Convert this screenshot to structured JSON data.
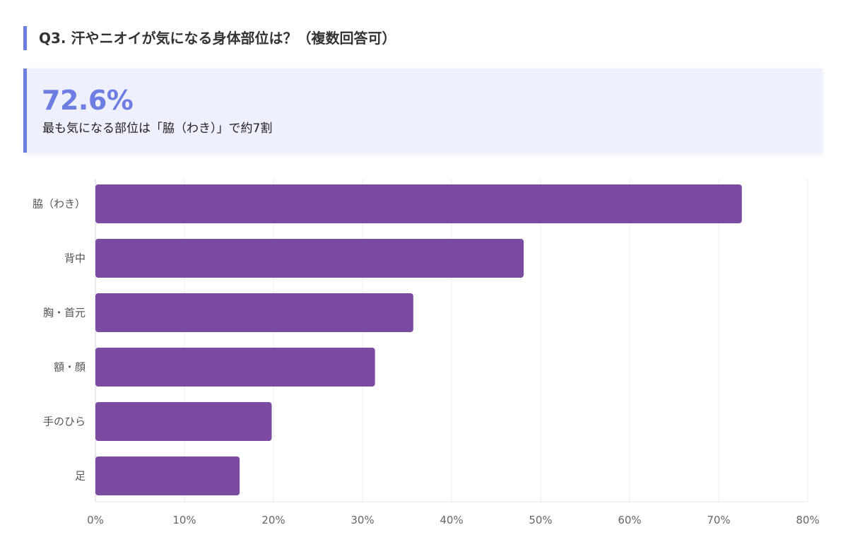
{
  "question": {
    "title": "Q3. 汗やニオイが気になる身体部位は？（複数回答可）"
  },
  "highlight": {
    "value": "72.6%",
    "caption": "最も気になる部位は「脇（わき）」で約7割"
  },
  "colors": {
    "accent": "#6c7ee1",
    "bar": "#7b4ba1",
    "card_bg": "#eff0fe",
    "grid": "#ececf2"
  },
  "chart_data": {
    "type": "bar",
    "orientation": "horizontal",
    "categories": [
      "脇（わき）",
      "背中",
      "胸・首元",
      "額・顔",
      "手のひら",
      "足"
    ],
    "values": [
      72.6,
      48.1,
      35.7,
      31.4,
      19.8,
      16.2
    ],
    "xlim": [
      0,
      80
    ],
    "xticks": [
      "0%",
      "10%",
      "20%",
      "30%",
      "40%",
      "50%",
      "60%",
      "70%",
      "80%"
    ],
    "grid": true
  }
}
